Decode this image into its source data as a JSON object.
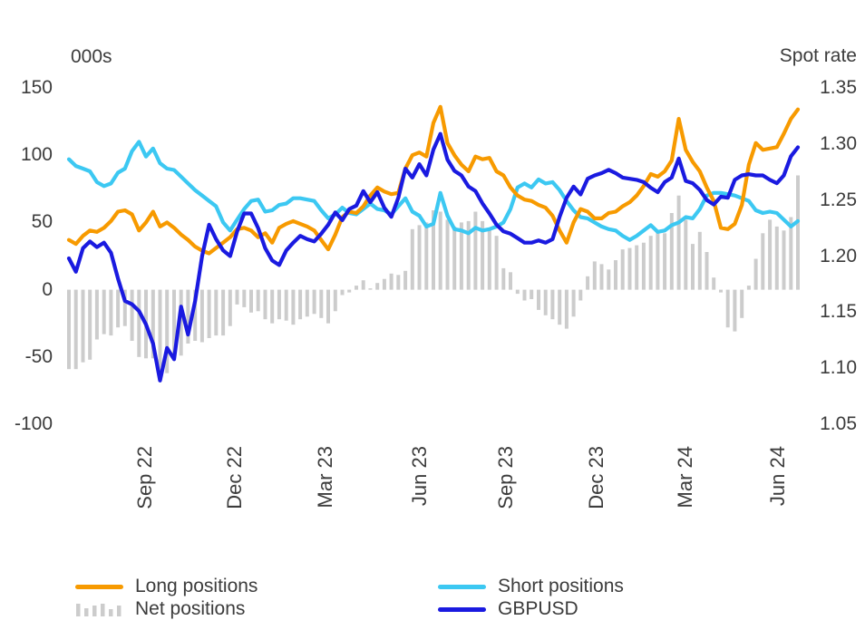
{
  "axes_titles": {
    "left": "000s",
    "right": "Spot rate"
  },
  "colors": {
    "long": "#f79a00",
    "short": "#3cc8f2",
    "gbpusd": "#1a1ae0",
    "net": "#cccccc",
    "text": "#3c3c3c"
  },
  "legend": {
    "items": [
      {
        "id": "long",
        "label": "Long positions",
        "swatch": "line"
      },
      {
        "id": "net",
        "label": "Net positions",
        "swatch": "bars"
      },
      {
        "id": "short",
        "label": "Short positions",
        "swatch": "line"
      },
      {
        "id": "gbpusd",
        "label": "GBPUSD",
        "swatch": "line"
      }
    ]
  },
  "chart_data": {
    "type": "mixed-bar-line",
    "x_unit": "weekly observations, mid-2022 to mid-2024",
    "title": "",
    "left_axis": {
      "label": "000s",
      "max": 150,
      "min": -100,
      "ticks": [
        "150",
        "100",
        "50",
        "0",
        "-50",
        "-100"
      ]
    },
    "right_axis": {
      "label": "Spot rate",
      "max": 1.35,
      "min": 1.05,
      "ticks": [
        "1.35",
        "1.30",
        "1.25",
        "1.20",
        "1.15",
        "1.10",
        "1.05"
      ]
    },
    "x_ticks": [
      {
        "label": "Sep 22",
        "pos": 10.75
      },
      {
        "label": "Dec 22",
        "pos": 23.6
      },
      {
        "label": "Mar 23",
        "pos": 36.5
      },
      {
        "label": "Jun 23",
        "pos": 49.9
      },
      {
        "label": "Sep 23",
        "pos": 62.2
      },
      {
        "label": "Dec 23",
        "pos": 75.1
      },
      {
        "label": "Mar 24",
        "pos": 87.8
      },
      {
        "label": "Jun 24",
        "pos": 101
      }
    ],
    "grid": false,
    "legend_position": "bottom",
    "series": [
      {
        "name": "Net positions",
        "type": "bar",
        "axis": "left",
        "color_key": "net",
        "values": [
          -59,
          -59,
          -54,
          -52,
          -37,
          -33,
          -34,
          -28,
          -27,
          -38,
          -50,
          -51,
          -51,
          -63,
          -62,
          -50,
          -49,
          -40,
          -38,
          -39,
          -36,
          -34,
          -34,
          -27,
          -11,
          -13,
          -17,
          -16,
          -22,
          -25,
          -22,
          -23,
          -26,
          -22,
          -20,
          -18,
          -21,
          -25,
          -16,
          -4,
          -2,
          3,
          7,
          1,
          5,
          8,
          12,
          11,
          14,
          45,
          48,
          50,
          59,
          58,
          52,
          47,
          50,
          51,
          58,
          51,
          46,
          40,
          16,
          13,
          -3,
          -8,
          -7,
          -15,
          -19,
          -22,
          -26,
          -29,
          -20,
          -8,
          10,
          21,
          19,
          15,
          22,
          30,
          31,
          33,
          35,
          40,
          44,
          42,
          57,
          70,
          52,
          34,
          43,
          28,
          9,
          -2,
          -28,
          -31,
          -21,
          3,
          23,
          42,
          52,
          47,
          44,
          54,
          85
        ]
      },
      {
        "name": "Short positions",
        "type": "line",
        "axis": "left",
        "color_key": "short",
        "values": [
          97,
          92,
          90,
          88,
          80,
          77,
          79,
          87,
          90,
          103,
          110,
          99,
          105,
          94,
          90,
          89,
          84,
          79,
          74,
          70,
          66,
          62,
          50,
          44,
          52,
          60,
          66,
          67,
          58,
          59,
          63,
          64,
          68,
          68,
          67,
          66,
          59,
          53,
          56,
          61,
          57,
          56,
          60,
          64,
          60,
          59,
          56,
          62,
          68,
          58,
          55,
          47,
          49,
          72,
          55,
          45,
          44,
          42,
          46,
          44,
          45,
          47,
          50,
          60,
          76,
          79,
          76,
          82,
          79,
          80,
          74,
          66,
          59,
          54,
          53,
          50,
          47,
          45,
          44,
          40,
          37,
          40,
          44,
          48,
          43,
          44,
          48,
          50,
          54,
          53,
          60,
          70,
          72,
          72,
          71,
          70,
          68,
          66,
          59,
          57,
          58,
          57,
          52,
          47,
          51
        ]
      },
      {
        "name": "Long positions",
        "type": "line",
        "axis": "left",
        "color_key": "long",
        "values": [
          37,
          34,
          40,
          44,
          43,
          46,
          51,
          58,
          59,
          56,
          44,
          50,
          58,
          47,
          50,
          46,
          41,
          37,
          32,
          29,
          27,
          31,
          35,
          39,
          45,
          46,
          44,
          39,
          42,
          35,
          46,
          49,
          51,
          49,
          47,
          44,
          37,
          30,
          41,
          54,
          58,
          57,
          62,
          70,
          76,
          73,
          71,
          72,
          90,
          100,
          102,
          99,
          124,
          136,
          109,
          100,
          93,
          88,
          99,
          97,
          98,
          88,
          85,
          76,
          70,
          67,
          66,
          63,
          61,
          55,
          44,
          35,
          50,
          60,
          58,
          53,
          53,
          57,
          58,
          62,
          65,
          70,
          77,
          86,
          84,
          88,
          96,
          127,
          104,
          95,
          88,
          76,
          66,
          46,
          45,
          49,
          63,
          93,
          109,
          104,
          105,
          106,
          116,
          127,
          134
        ]
      },
      {
        "name": "GBPUSD",
        "type": "line",
        "axis": "right",
        "color_key": "gbpusd",
        "values": [
          1.198,
          1.186,
          1.207,
          1.213,
          1.208,
          1.212,
          1.203,
          1.18,
          1.16,
          1.157,
          1.151,
          1.139,
          1.122,
          1.089,
          1.118,
          1.108,
          1.155,
          1.13,
          1.16,
          1.2,
          1.228,
          1.215,
          1.205,
          1.2,
          1.222,
          1.238,
          1.238,
          1.225,
          1.207,
          1.196,
          1.192,
          1.205,
          1.212,
          1.218,
          1.215,
          1.213,
          1.22,
          1.228,
          1.239,
          1.232,
          1.242,
          1.245,
          1.258,
          1.248,
          1.257,
          1.243,
          1.235,
          1.252,
          1.278,
          1.27,
          1.282,
          1.272,
          1.295,
          1.309,
          1.286,
          1.276,
          1.272,
          1.262,
          1.258,
          1.247,
          1.238,
          1.228,
          1.222,
          1.22,
          1.216,
          1.212,
          1.212,
          1.214,
          1.212,
          1.215,
          1.235,
          1.252,
          1.262,
          1.255,
          1.269,
          1.272,
          1.274,
          1.277,
          1.274,
          1.27,
          1.269,
          1.268,
          1.266,
          1.261,
          1.257,
          1.266,
          1.27,
          1.287,
          1.267,
          1.265,
          1.259,
          1.25,
          1.246,
          1.253,
          1.252,
          1.268,
          1.272,
          1.273,
          1.272,
          1.272,
          1.268,
          1.265,
          1.272,
          1.289,
          1.297
        ]
      }
    ]
  }
}
